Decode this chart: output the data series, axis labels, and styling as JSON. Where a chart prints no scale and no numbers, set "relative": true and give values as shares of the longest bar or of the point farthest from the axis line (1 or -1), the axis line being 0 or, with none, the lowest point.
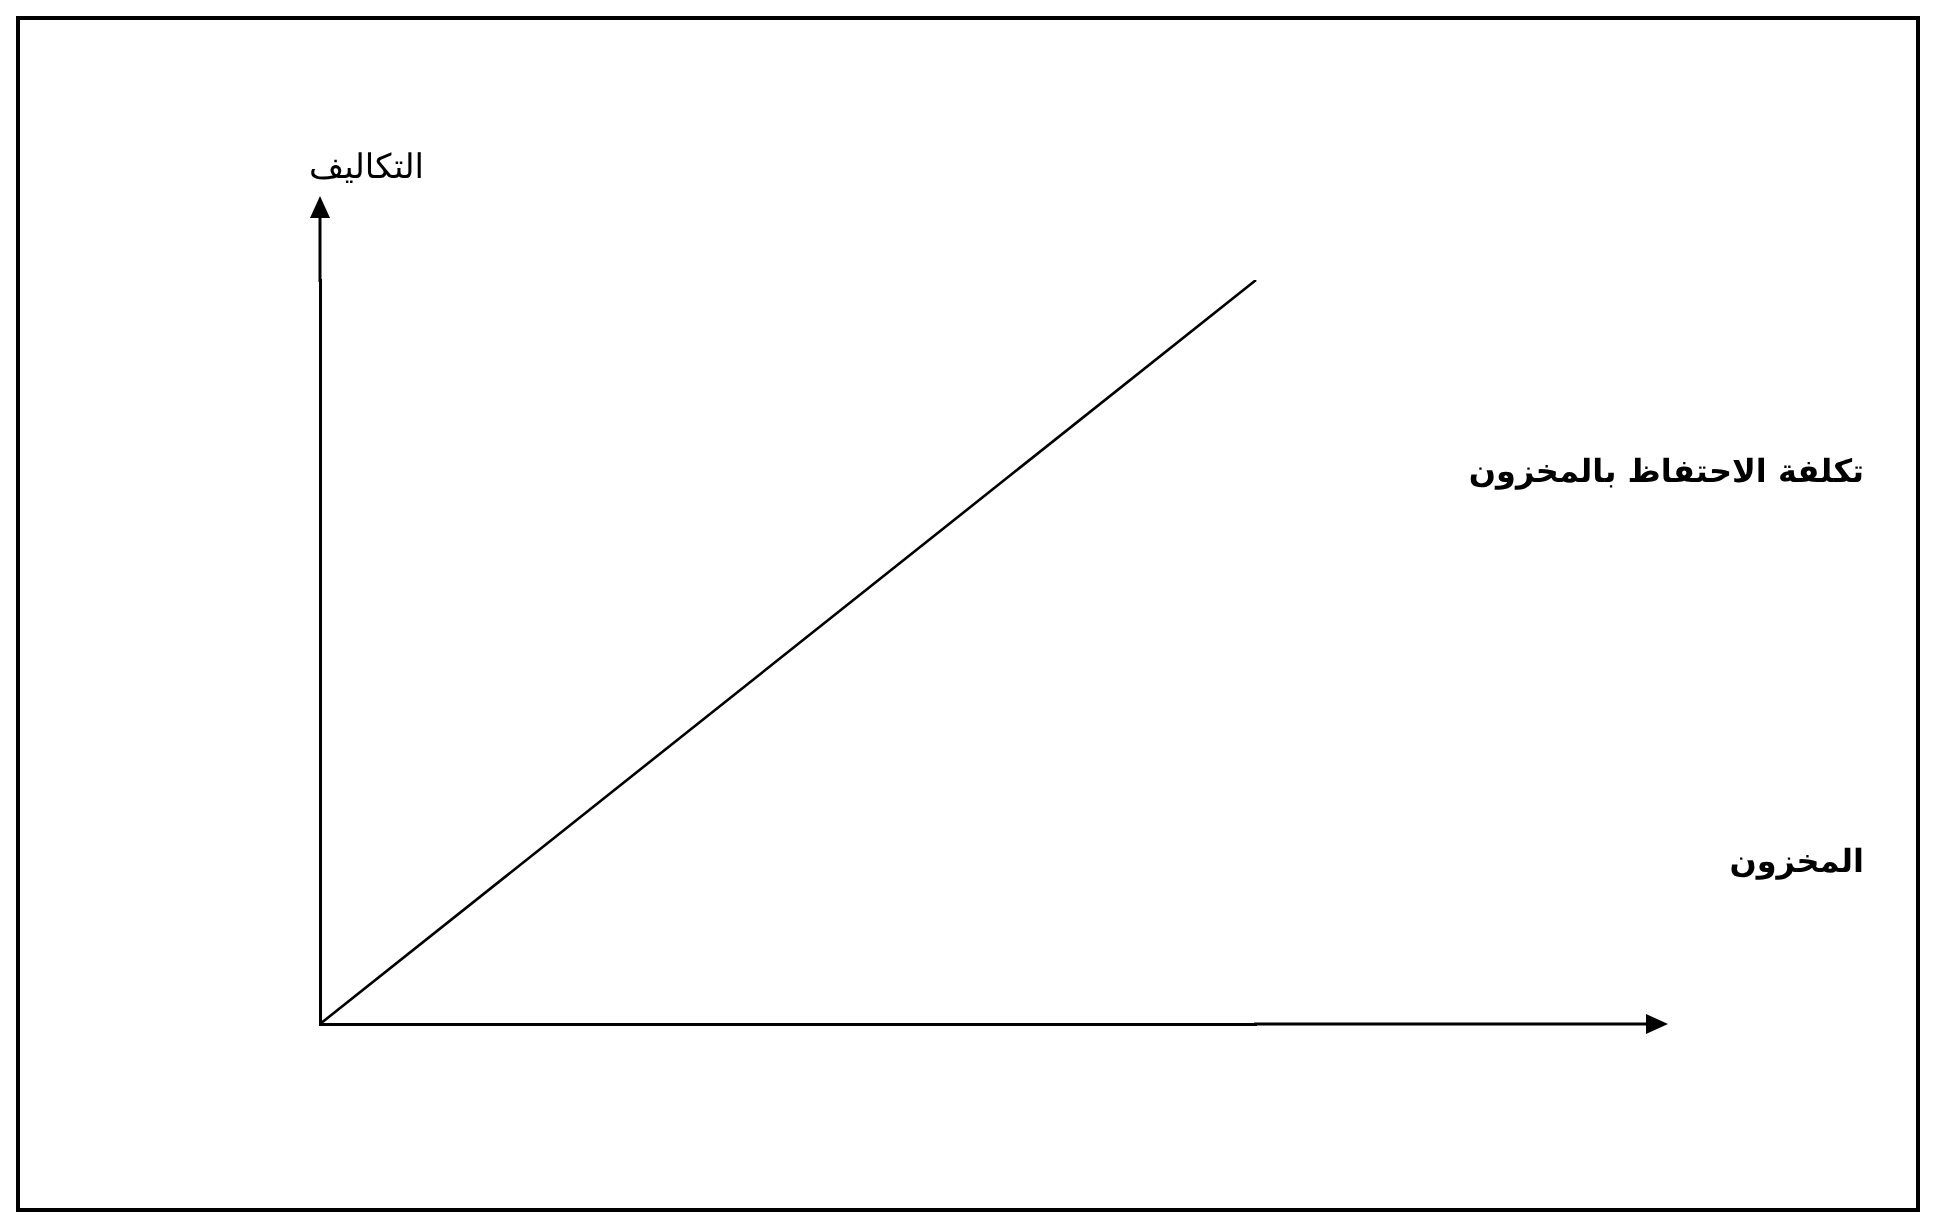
{
  "chart_data": {
    "type": "line",
    "relative": true,
    "xlabel": "المخزون",
    "ylabel": "التكاليف",
    "categories": [
      null,
      null
    ],
    "series": [
      {
        "name": "تكلفة الاحتفاظ بالمخزون",
        "color": "#000000",
        "values": [
          0,
          1
        ]
      }
    ],
    "marker": "none",
    "grid": false,
    "legend": false
  }
}
